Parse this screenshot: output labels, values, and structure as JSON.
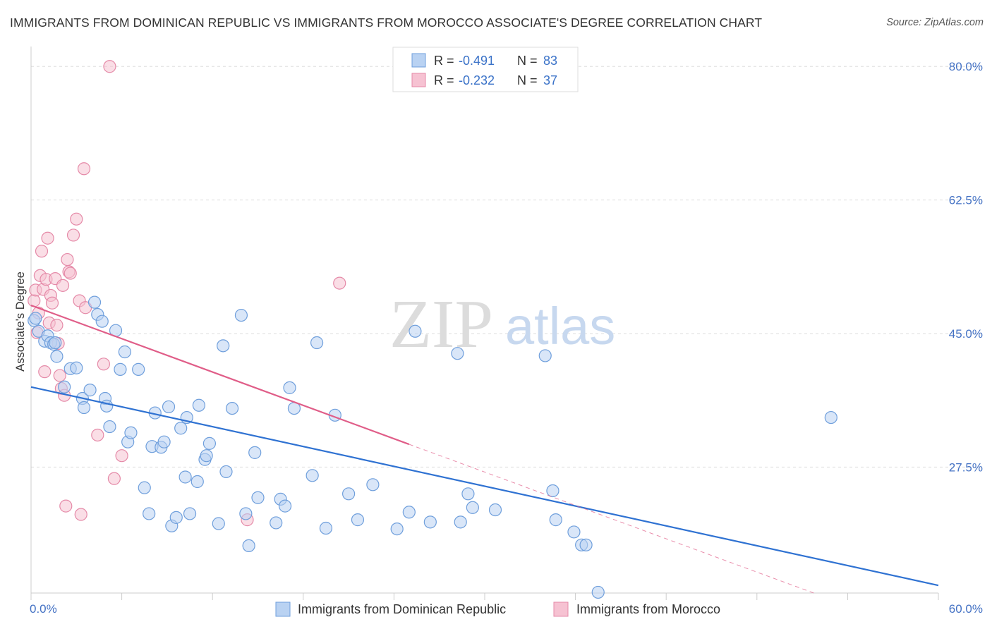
{
  "header": {
    "title": "IMMIGRANTS FROM DOMINICAN REPUBLIC VS IMMIGRANTS FROM MOROCCO ASSOCIATE'S DEGREE CORRELATION CHART",
    "source": "Source: ZipAtlas.com"
  },
  "watermark": {
    "zip": "ZIP",
    "atlas": "atlas"
  },
  "colors": {
    "blue_fill": "#b9d2f2",
    "blue_stroke": "#6f9fdc",
    "blue_line": "#2f72d2",
    "pink_fill": "#f6c2d2",
    "pink_stroke": "#e58aa8",
    "pink_line": "#e05d88",
    "grid": "#dddddd",
    "tick_text": "#4472c4"
  },
  "legend": {
    "rows": [
      {
        "r_label": "R = ",
        "r_value": "-0.491",
        "n_label": "N = ",
        "n_value": "83"
      },
      {
        "r_label": "R = ",
        "r_value": "-0.232",
        "n_label": "N = ",
        "n_value": "37"
      }
    ]
  },
  "chart_data": {
    "type": "scatter",
    "title": "IMMIGRANTS FROM DOMINICAN REPUBLIC VS IMMIGRANTS FROM MOROCCO ASSOCIATE'S DEGREE CORRELATION CHART",
    "xlabel": "",
    "ylabel": "Associate's Degree",
    "xlim": [
      0,
      60
    ],
    "ylim": [
      11,
      81.5
    ],
    "x_tick_labels": [
      "0.0%",
      "60.0%"
    ],
    "y_ticks": [
      27.5,
      45.0,
      62.5,
      80.0
    ],
    "y_tick_labels": [
      "27.5%",
      "45.0%",
      "62.5%",
      "80.0%"
    ],
    "grid": true,
    "series": [
      {
        "name": "Immigrants from Dominican Republic",
        "color": "#6f9fdc",
        "r": -0.491,
        "n": 83,
        "trend": {
          "x": [
            0,
            60
          ],
          "y": [
            38.0,
            12.0
          ],
          "dashed_from_x": null
        },
        "points": [
          [
            0.2,
            46.7
          ],
          [
            0.3,
            47.0
          ],
          [
            0.5,
            45.3
          ],
          [
            0.9,
            44.0
          ],
          [
            1.1,
            44.7
          ],
          [
            1.3,
            43.8
          ],
          [
            1.5,
            43.6
          ],
          [
            1.7,
            42.0
          ],
          [
            2.2,
            38.0
          ],
          [
            2.6,
            40.4
          ],
          [
            3.0,
            40.5
          ],
          [
            3.4,
            36.5
          ],
          [
            3.5,
            35.3
          ],
          [
            3.9,
            37.6
          ],
          [
            4.2,
            49.1
          ],
          [
            4.4,
            47.5
          ],
          [
            4.7,
            46.6
          ],
          [
            4.9,
            36.5
          ],
          [
            5.0,
            35.5
          ],
          [
            5.2,
            32.8
          ],
          [
            5.6,
            45.4
          ],
          [
            5.9,
            40.3
          ],
          [
            6.2,
            42.6
          ],
          [
            6.4,
            30.8
          ],
          [
            6.6,
            32.0
          ],
          [
            7.1,
            40.3
          ],
          [
            7.5,
            24.8
          ],
          [
            7.8,
            21.4
          ],
          [
            8.0,
            30.2
          ],
          [
            8.2,
            34.6
          ],
          [
            8.6,
            30.1
          ],
          [
            8.8,
            30.8
          ],
          [
            9.1,
            35.4
          ],
          [
            9.3,
            19.8
          ],
          [
            9.6,
            20.9
          ],
          [
            9.9,
            32.6
          ],
          [
            10.2,
            26.2
          ],
          [
            10.3,
            34.0
          ],
          [
            10.5,
            21.4
          ],
          [
            11.0,
            25.6
          ],
          [
            11.1,
            35.6
          ],
          [
            11.5,
            28.5
          ],
          [
            11.6,
            29.0
          ],
          [
            11.8,
            30.6
          ],
          [
            12.4,
            20.1
          ],
          [
            12.7,
            43.4
          ],
          [
            12.9,
            26.9
          ],
          [
            13.3,
            35.2
          ],
          [
            13.9,
            47.4
          ],
          [
            14.2,
            21.4
          ],
          [
            14.4,
            17.2
          ],
          [
            14.8,
            29.4
          ],
          [
            15.0,
            23.5
          ],
          [
            16.2,
            20.2
          ],
          [
            16.5,
            23.3
          ],
          [
            16.8,
            22.4
          ],
          [
            17.1,
            37.9
          ],
          [
            17.4,
            35.2
          ],
          [
            18.6,
            26.4
          ],
          [
            18.9,
            43.8
          ],
          [
            19.5,
            19.5
          ],
          [
            20.1,
            34.3
          ],
          [
            21.0,
            24.0
          ],
          [
            21.6,
            20.6
          ],
          [
            22.6,
            25.2
          ],
          [
            24.2,
            19.4
          ],
          [
            25.0,
            21.6
          ],
          [
            25.4,
            45.3
          ],
          [
            26.4,
            20.3
          ],
          [
            28.2,
            42.4
          ],
          [
            28.4,
            20.3
          ],
          [
            28.9,
            24.0
          ],
          [
            29.2,
            22.2
          ],
          [
            30.7,
            21.9
          ],
          [
            34.0,
            42.1
          ],
          [
            34.5,
            24.4
          ],
          [
            34.7,
            20.6
          ],
          [
            35.9,
            19.0
          ],
          [
            36.4,
            17.3
          ],
          [
            36.7,
            17.3
          ],
          [
            37.5,
            11.1
          ],
          [
            52.9,
            34.0
          ],
          [
            1.6,
            43.8
          ]
        ]
      },
      {
        "name": "Immigrants from Morocco",
        "color": "#e58aa8",
        "r": -0.232,
        "n": 37,
        "trend": {
          "x": [
            0,
            60
          ],
          "y": [
            48.7,
            5.0
          ],
          "dashed_from_x": 25.0
        },
        "points": [
          [
            0.2,
            49.3
          ],
          [
            0.3,
            50.7
          ],
          [
            0.5,
            47.7
          ],
          [
            0.6,
            52.6
          ],
          [
            0.7,
            55.8
          ],
          [
            0.8,
            50.8
          ],
          [
            0.9,
            40.0
          ],
          [
            1.0,
            52.1
          ],
          [
            1.1,
            57.5
          ],
          [
            1.2,
            46.4
          ],
          [
            1.3,
            50.0
          ],
          [
            1.4,
            49.0
          ],
          [
            1.6,
            52.2
          ],
          [
            1.7,
            46.1
          ],
          [
            1.8,
            43.7
          ],
          [
            1.9,
            39.5
          ],
          [
            2.0,
            37.8
          ],
          [
            2.1,
            51.3
          ],
          [
            2.2,
            36.9
          ],
          [
            2.3,
            22.4
          ],
          [
            2.4,
            54.7
          ],
          [
            2.5,
            53.1
          ],
          [
            2.6,
            52.9
          ],
          [
            2.8,
            57.9
          ],
          [
            3.0,
            60.0
          ],
          [
            3.2,
            49.3
          ],
          [
            3.3,
            21.3
          ],
          [
            3.5,
            66.6
          ],
          [
            4.4,
            31.7
          ],
          [
            4.8,
            41.0
          ],
          [
            5.2,
            80.0
          ],
          [
            5.5,
            26.0
          ],
          [
            6.0,
            29.0
          ],
          [
            14.3,
            20.6
          ],
          [
            20.4,
            51.6
          ],
          [
            3.6,
            48.4
          ],
          [
            0.4,
            45.1
          ]
        ]
      }
    ]
  }
}
